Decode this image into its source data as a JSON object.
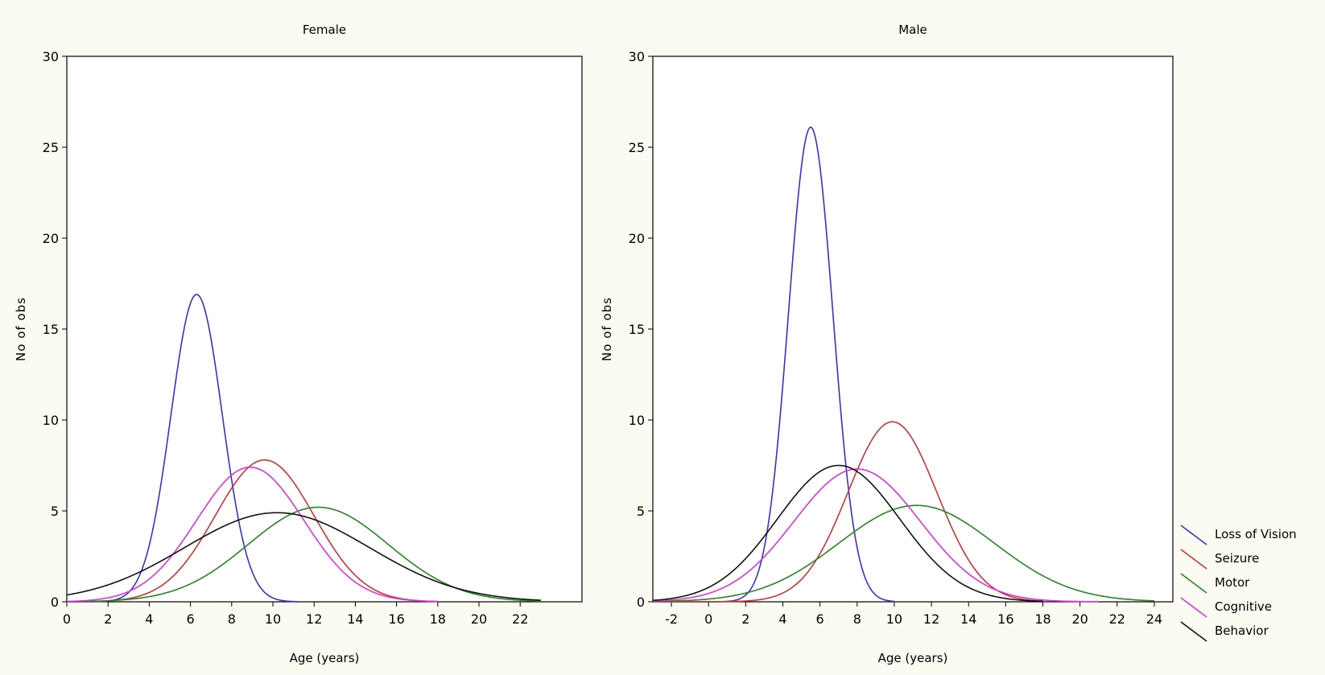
{
  "chart_data": [
    {
      "type": "line",
      "title": "Female",
      "xlabel": "Age (years)",
      "ylabel": "No of obs",
      "xlim": [
        0,
        25
      ],
      "ylim": [
        0,
        30
      ],
      "xticks": [
        0,
        2,
        4,
        6,
        8,
        10,
        12,
        14,
        16,
        18,
        20,
        22
      ],
      "yticks": [
        0,
        5,
        10,
        15,
        20,
        25,
        30
      ],
      "grid": false,
      "series": [
        {
          "name": "Loss of Vision",
          "color": "#3333cc",
          "curve": "normal",
          "peak": 16.9,
          "mean": 6.3,
          "sd": 1.25,
          "x_end": 11.2
        },
        {
          "name": "Seizure",
          "color": "#cc3333",
          "curve": "normal",
          "peak": 7.8,
          "mean": 9.6,
          "sd": 2.4,
          "x_end": 18
        },
        {
          "name": "Motor",
          "color": "#228822",
          "curve": "normal",
          "peak": 5.2,
          "mean": 12.2,
          "sd": 3.4,
          "x_end": 23
        },
        {
          "name": "Cognitive",
          "color": "#dd33dd",
          "curve": "normal",
          "peak": 7.4,
          "mean": 8.9,
          "sd": 2.6,
          "x_end": 18
        },
        {
          "name": "Behavior",
          "color": "#111111",
          "curve": "normal",
          "peak": 4.9,
          "mean": 10.2,
          "sd": 4.5,
          "x_end": 23
        }
      ]
    },
    {
      "type": "line",
      "title": "Male",
      "xlabel": "Age (years)",
      "ylabel": "No of obs",
      "xlim": [
        -3,
        25
      ],
      "ylim": [
        0,
        30
      ],
      "xticks": [
        -2,
        0,
        2,
        4,
        6,
        8,
        10,
        12,
        14,
        16,
        18,
        20,
        22,
        24
      ],
      "yticks": [
        0,
        5,
        10,
        15,
        20,
        25,
        30
      ],
      "grid": false,
      "legend": "right",
      "series": [
        {
          "name": "Loss of Vision",
          "color": "#3333cc",
          "curve": "normal",
          "peak": 26.1,
          "mean": 5.5,
          "sd": 1.2,
          "x_end": 10
        },
        {
          "name": "Seizure",
          "color": "#cc3333",
          "curve": "normal",
          "peak": 9.9,
          "mean": 9.9,
          "sd": 2.4,
          "x_end": 18
        },
        {
          "name": "Motor",
          "color": "#228822",
          "curve": "normal",
          "peak": 5.3,
          "mean": 11.2,
          "sd": 4.2,
          "x_end": 24
        },
        {
          "name": "Cognitive",
          "color": "#dd33dd",
          "curve": "normal",
          "peak": 7.3,
          "mean": 8.0,
          "sd": 3.4,
          "x_end": 21
        },
        {
          "name": "Behavior",
          "color": "#111111",
          "curve": "normal",
          "peak": 7.5,
          "mean": 7.0,
          "sd": 3.3,
          "x_end": 18
        }
      ]
    }
  ],
  "legend": {
    "items": [
      {
        "name": "Loss of Vision",
        "color": "#3333cc"
      },
      {
        "name": "Seizure",
        "color": "#cc3333"
      },
      {
        "name": "Motor",
        "color": "#228822"
      },
      {
        "name": "Cognitive",
        "color": "#dd33dd"
      },
      {
        "name": "Behavior",
        "color": "#111111"
      }
    ]
  }
}
